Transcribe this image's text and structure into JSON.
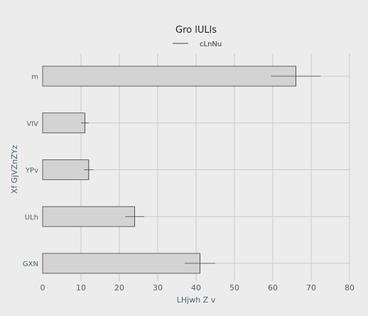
{
  "chart_data": {
    "type": "bar",
    "orientation": "horizontal",
    "title": "Gro lULls",
    "xlabel": "LHjwh Z v",
    "ylabel": "Xf GjVZnZYz",
    "categories": [
      "m",
      "VIV",
      "YPv",
      "ULh",
      "GXN"
    ],
    "series": [
      {
        "name": "cLnNu",
        "values": [
          66,
          11,
          12,
          24,
          41
        ],
        "errors": [
          6.5,
          1.0,
          1.2,
          2.5,
          4.0
        ]
      }
    ],
    "xlim": [
      0,
      80
    ],
    "xticks": [
      0,
      10,
      20,
      30,
      40,
      50,
      60,
      70,
      80
    ],
    "grid": true,
    "legend": "top-center",
    "colors": {
      "background": "#ececec",
      "bar_fill": "#d3d3d3",
      "bar_stroke": "#444444",
      "grid": "#c8c8c8",
      "error_bar": "#444444"
    }
  }
}
